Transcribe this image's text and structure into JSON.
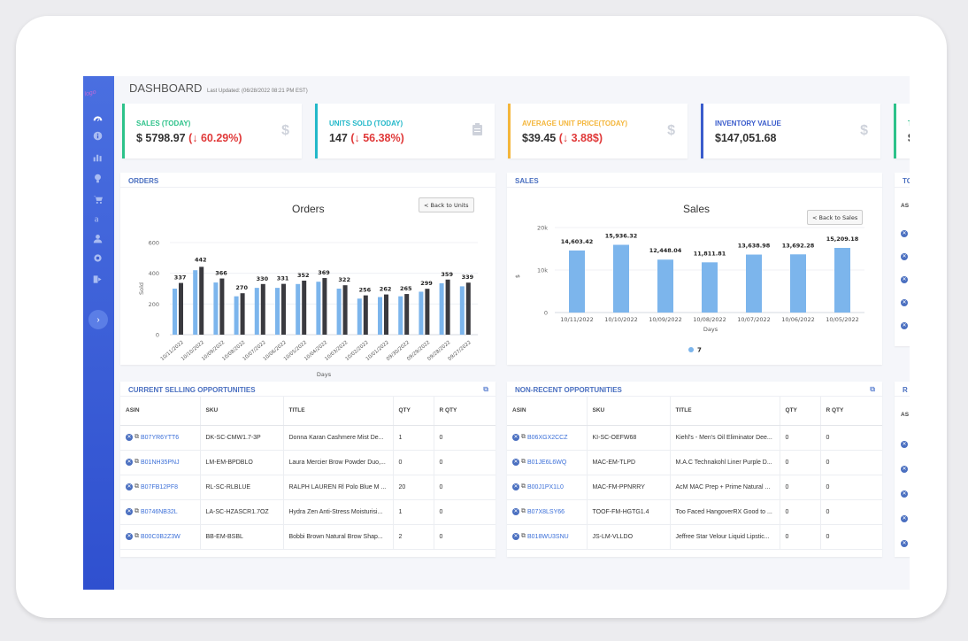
{
  "header": {
    "title": "DASHBOARD",
    "updated": "Last Updated: (06/28/2022 08:21 PM EST)"
  },
  "sidebar": {
    "items": [
      "dashboard-icon",
      "info-icon",
      "chart-icon",
      "bulb-icon",
      "cart-icon",
      "amazon-icon",
      "user-icon",
      "gear-icon",
      "logout-icon"
    ],
    "expand_label": "›"
  },
  "kpis": [
    {
      "label": "SALES (TODAY)",
      "value": "$ 5798.97",
      "change": "(↓ 60.29%)",
      "icon": "$",
      "color": "#2dc28a"
    },
    {
      "label": "UNITS SOLD (TODAY)",
      "value": "147",
      "change": "(↓ 56.38%)",
      "icon": "clipboard",
      "color": "#22b8c9"
    },
    {
      "label": "AVERAGE UNIT PRICE(TODAY)",
      "value": "$39.45",
      "change": "(↓ 3.88$)",
      "icon": "$",
      "color": "#f4b63b"
    },
    {
      "label": "INVENTORY VALUE",
      "value": "$147,051.68",
      "change": "",
      "icon": "$",
      "color": "#3a5ccc"
    },
    {
      "label": "T",
      "value": "$",
      "change": "",
      "icon": "",
      "color": "#2dc28a"
    }
  ],
  "orders_panel": {
    "header": "ORDERS",
    "chart_title": "Orders",
    "back_button": "< Back to Units",
    "ylabel": "Sold",
    "xlabel": "Days",
    "legend_a": "15",
    "legend_b": "15",
    "yticks": [
      "600",
      "400",
      "200",
      "0"
    ]
  },
  "sales_panel": {
    "header": "SALES",
    "chart_title": "Sales",
    "back_button": "< Back to Sales",
    "ylabel": "$",
    "xlabel": "Days",
    "legend_a": "7",
    "yticks": [
      "20k",
      "10k",
      "0"
    ]
  },
  "right_panel": {
    "header": "TO",
    "col": "AS"
  },
  "chart_data": [
    {
      "type": "bar",
      "title": "Orders",
      "xlabel": "Days",
      "ylabel": "Sold",
      "ylim": [
        0,
        600
      ],
      "categories": [
        "10/11/2022",
        "10/10/2022",
        "10/09/2022",
        "10/08/2022",
        "10/07/2022",
        "10/06/2022",
        "10/05/2022",
        "10/04/2022",
        "10/03/2022",
        "10/02/2022",
        "10/01/2022",
        "09/30/2022",
        "09/29/2022",
        "09/28/2022",
        "09/27/2022"
      ],
      "series": [
        {
          "name": "15",
          "color": "#7cb5ec",
          "values": [
            300,
            420,
            340,
            250,
            305,
            305,
            330,
            345,
            300,
            235,
            245,
            250,
            280,
            335,
            315
          ]
        },
        {
          "name": "15",
          "color": "#3a3a3f",
          "values": [
            337,
            442,
            366,
            270,
            330,
            331,
            352,
            369,
            322,
            256,
            262,
            265,
            299,
            359,
            339
          ]
        }
      ]
    },
    {
      "type": "bar",
      "title": "Sales",
      "xlabel": "Days",
      "ylabel": "$",
      "ylim": [
        0,
        20000
      ],
      "categories": [
        "10/11/2022",
        "10/10/2022",
        "10/09/2022",
        "10/08/2022",
        "10/07/2022",
        "10/06/2022",
        "10/05/2022"
      ],
      "series": [
        {
          "name": "7",
          "color": "#7cb5ec",
          "values": [
            14603.42,
            15936.32,
            12448.04,
            11811.81,
            13638.98,
            13692.28,
            15209.18
          ]
        }
      ],
      "labels": [
        "14,603.42",
        "15,936.32",
        "12,448.04",
        "11,811.81",
        "13,638.98",
        "13,692.28",
        "15,209.18"
      ]
    }
  ],
  "current_opps": {
    "header": "CURRENT SELLING OPPORTUNITIES",
    "columns": [
      "ASIN",
      "SKU",
      "TITLE",
      "QTY",
      "R QTY"
    ],
    "rows": [
      {
        "asin": "B07YR6YTT6",
        "sku": "DK-SC-CMW1.7-3P",
        "title": "Donna Karan Cashmere Mist De...",
        "qty": "1",
        "rqty": "0"
      },
      {
        "asin": "B01NH35PNJ",
        "sku": "LM-EM-BPDBLO",
        "title": "Laura Mercier Brow Powder Duo,...",
        "qty": "0",
        "rqty": "0"
      },
      {
        "asin": "B07FB12PF8",
        "sku": "RL-SC-RLBLUE",
        "title": "RALPH LAUREN Rl Polo Blue M ...",
        "qty": "20",
        "rqty": "0"
      },
      {
        "asin": "B0746NB32L",
        "sku": "LA-SC-HZASCR1.7OZ",
        "title": "Hydra Zen Anti-Stress Moisturisi...",
        "qty": "1",
        "rqty": "0"
      },
      {
        "asin": "B00C0B2Z3W",
        "sku": "BB-EM-BSBL",
        "title": "Bobbi Brown Natural Brow Shap...",
        "qty": "2",
        "rqty": "0"
      }
    ]
  },
  "nonrecent_opps": {
    "header": "NON-RECENT OPPORTUNITIES",
    "columns": [
      "ASIN",
      "SKU",
      "TITLE",
      "QTY",
      "R QTY"
    ],
    "rows": [
      {
        "asin": "B06XGX2CCZ",
        "sku": "KI-SC-OEFW68",
        "title": "Kiehl's - Men's Oil Eliminator Dee...",
        "qty": "0",
        "rqty": "0"
      },
      {
        "asin": "B01JE6L6WQ",
        "sku": "MAC-EM-TLPD",
        "title": "M.A.C Technakohl Liner Purple D...",
        "qty": "0",
        "rqty": "0"
      },
      {
        "asin": "B00J1PX1L0",
        "sku": "MAC-FM-PPNRRY",
        "title": "AcM MAC Prep + Prime Natural ...",
        "qty": "0",
        "rqty": "0"
      },
      {
        "asin": "B07X8LSY66",
        "sku": "TOOF-FM-HGTG1.4",
        "title": "Too Faced HangoverRX Good to ...",
        "qty": "0",
        "rqty": "0"
      },
      {
        "asin": "B018WU3SNU",
        "sku": "JS-LM-VLLDO",
        "title": "Jeffree Star Velour Liquid Lipstic...",
        "qty": "0",
        "rqty": "0"
      }
    ]
  },
  "right_table": {
    "header": "R",
    "col": "AS"
  }
}
